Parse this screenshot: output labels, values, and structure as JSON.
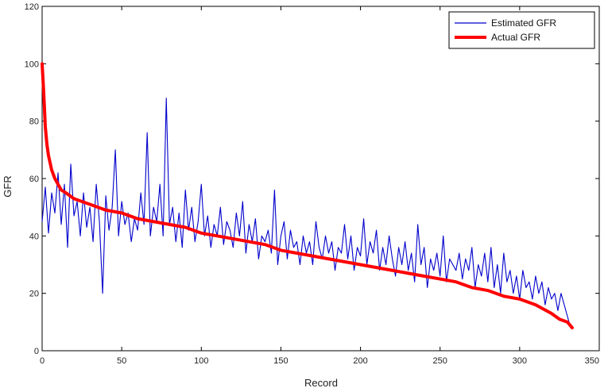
{
  "chart_data": {
    "type": "line",
    "xlabel": "Record",
    "ylabel": "GFR",
    "xlim": [
      0,
      350
    ],
    "ylim": [
      0,
      120
    ],
    "xticks": [
      "0",
      "50",
      "100",
      "150",
      "200",
      "250",
      "300",
      "350"
    ],
    "yticks": [
      "0",
      "20",
      "40",
      "60",
      "80",
      "100",
      "120"
    ],
    "grid": false,
    "legend_position": "top-right",
    "series": [
      {
        "name": "Estimated GFR",
        "color": "#0000cc",
        "style": "thin",
        "x": [
          0,
          2,
          4,
          6,
          8,
          10,
          12,
          14,
          16,
          18,
          20,
          22,
          24,
          26,
          28,
          30,
          32,
          34,
          36,
          38,
          40,
          42,
          44,
          46,
          48,
          50,
          52,
          54,
          56,
          58,
          60,
          62,
          64,
          66,
          68,
          70,
          72,
          74,
          76,
          78,
          80,
          82,
          84,
          86,
          88,
          90,
          92,
          94,
          96,
          98,
          100,
          102,
          104,
          106,
          108,
          110,
          112,
          114,
          116,
          118,
          120,
          122,
          124,
          126,
          128,
          130,
          132,
          134,
          136,
          138,
          140,
          142,
          144,
          146,
          148,
          150,
          152,
          154,
          156,
          158,
          160,
          162,
          164,
          166,
          168,
          170,
          172,
          174,
          176,
          178,
          180,
          182,
          184,
          186,
          188,
          190,
          192,
          194,
          196,
          198,
          200,
          202,
          204,
          206,
          208,
          210,
          212,
          214,
          216,
          218,
          220,
          222,
          224,
          226,
          228,
          230,
          232,
          234,
          236,
          238,
          240,
          242,
          244,
          246,
          248,
          250,
          252,
          254,
          256,
          258,
          260,
          262,
          264,
          266,
          268,
          270,
          272,
          274,
          276,
          278,
          280,
          282,
          284,
          286,
          288,
          290,
          292,
          294,
          296,
          298,
          300,
          302,
          304,
          306,
          308,
          310,
          312,
          314,
          316,
          318,
          320,
          322,
          324,
          326,
          328,
          330,
          332
        ],
        "values": [
          45,
          57,
          41,
          55,
          48,
          62,
          44,
          58,
          36,
          65,
          47,
          52,
          40,
          55,
          43,
          50,
          38,
          58,
          45,
          20,
          54,
          42,
          50,
          70,
          40,
          52,
          44,
          48,
          38,
          46,
          42,
          55,
          44,
          76,
          40,
          50,
          45,
          58,
          40,
          88,
          44,
          50,
          38,
          48,
          36,
          56,
          42,
          50,
          38,
          45,
          58,
          40,
          47,
          36,
          44,
          40,
          50,
          37,
          45,
          42,
          36,
          48,
          40,
          52,
          34,
          44,
          38,
          46,
          32,
          40,
          38,
          42,
          34,
          56,
          30,
          40,
          45,
          32,
          42,
          36,
          38,
          30,
          40,
          34,
          38,
          30,
          45,
          36,
          32,
          40,
          34,
          38,
          28,
          36,
          34,
          44,
          32,
          40,
          28,
          36,
          33,
          46,
          30,
          38,
          34,
          42,
          28,
          36,
          30,
          40,
          32,
          26,
          36,
          30,
          38,
          28,
          34,
          24,
          44,
          30,
          36,
          22,
          32,
          28,
          34,
          26,
          40,
          24,
          32,
          30,
          28,
          34,
          25,
          32,
          28,
          36,
          22,
          30,
          26,
          34,
          24,
          36,
          22,
          30,
          20,
          34,
          24,
          28,
          20,
          26,
          18,
          28,
          22,
          24,
          18,
          26,
          20,
          24,
          16,
          22,
          18,
          20,
          14,
          20,
          16,
          12,
          8
        ]
      },
      {
        "name": "Actual GFR",
        "color": "#ff0000",
        "style": "thick",
        "x": [
          0,
          1,
          2,
          3,
          4,
          6,
          8,
          10,
          12,
          15,
          20,
          30,
          40,
          50,
          60,
          70,
          80,
          90,
          100,
          110,
          120,
          130,
          140,
          150,
          160,
          170,
          180,
          190,
          200,
          210,
          220,
          230,
          240,
          250,
          260,
          270,
          280,
          290,
          300,
          310,
          320,
          325,
          330,
          333
        ],
        "values": [
          100,
          90,
          78,
          72,
          68,
          63,
          60,
          58,
          56,
          55,
          53,
          51,
          49,
          48,
          46,
          45,
          44,
          43,
          41,
          40,
          39,
          38,
          37,
          35,
          34,
          33,
          32,
          31,
          30,
          29,
          28,
          27,
          26,
          25,
          24,
          22,
          21,
          19,
          18,
          16,
          13,
          11,
          10,
          8
        ]
      }
    ]
  }
}
